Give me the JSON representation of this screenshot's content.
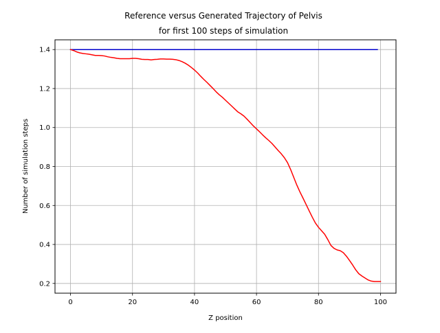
{
  "chart_data": {
    "type": "line",
    "title": [
      "Reference versus Generated Trajectory of Pelvis",
      "for first 100 steps of simulation"
    ],
    "xlabel": "Z position",
    "ylabel": "Number of simulation steps",
    "xlim": [
      -5,
      105
    ],
    "ylim": [
      0.15,
      1.45
    ],
    "grid": true,
    "x_ticks": [
      0,
      20,
      40,
      60,
      80,
      100
    ],
    "x_tick_labels": [
      "0",
      "20",
      "40",
      "60",
      "80",
      "100"
    ],
    "y_ticks": [
      0.2,
      0.4,
      0.6,
      0.8,
      1.0,
      1.2,
      1.4
    ],
    "y_tick_labels": [
      "0.2",
      "0.4",
      "0.6",
      "0.8",
      "1.0",
      "1.2",
      "1.4"
    ],
    "series": [
      {
        "color": "#0000cc",
        "x": [
          0,
          99
        ],
        "y": [
          1.4,
          1.4
        ]
      },
      {
        "color": "#ff0000",
        "x": [
          0,
          1,
          2,
          3,
          4,
          5,
          6,
          7,
          8,
          9,
          10,
          11,
          12,
          13,
          14,
          15,
          16,
          17,
          18,
          19,
          20,
          21,
          22,
          23,
          24,
          25,
          26,
          27,
          28,
          29,
          30,
          31,
          32,
          33,
          34,
          35,
          36,
          37,
          38,
          39,
          40,
          41,
          42,
          43,
          44,
          45,
          46,
          47,
          48,
          49,
          50,
          51,
          52,
          53,
          54,
          55,
          56,
          57,
          58,
          59,
          60,
          61,
          62,
          63,
          64,
          65,
          66,
          67,
          68,
          69,
          70,
          71,
          72,
          73,
          74,
          75,
          76,
          77,
          78,
          79,
          80,
          81,
          82,
          83,
          84,
          85,
          86,
          87,
          88,
          89,
          90,
          91,
          92,
          93,
          94,
          95,
          96,
          97,
          98,
          99,
          100
        ],
        "y": [
          1.4,
          1.395,
          1.388,
          1.383,
          1.38,
          1.378,
          1.376,
          1.373,
          1.37,
          1.37,
          1.369,
          1.367,
          1.363,
          1.36,
          1.358,
          1.355,
          1.353,
          1.353,
          1.353,
          1.353,
          1.355,
          1.355,
          1.353,
          1.35,
          1.349,
          1.349,
          1.347,
          1.349,
          1.35,
          1.352,
          1.352,
          1.351,
          1.351,
          1.35,
          1.348,
          1.344,
          1.338,
          1.33,
          1.32,
          1.308,
          1.295,
          1.28,
          1.263,
          1.247,
          1.232,
          1.216,
          1.2,
          1.183,
          1.168,
          1.155,
          1.14,
          1.125,
          1.11,
          1.095,
          1.08,
          1.07,
          1.058,
          1.042,
          1.025,
          1.008,
          0.993,
          0.978,
          0.962,
          0.947,
          0.933,
          0.918,
          0.9,
          0.882,
          0.865,
          0.845,
          0.82,
          0.785,
          0.745,
          0.705,
          0.67,
          0.638,
          0.605,
          0.572,
          0.54,
          0.51,
          0.488,
          0.47,
          0.452,
          0.425,
          0.395,
          0.38,
          0.372,
          0.368,
          0.358,
          0.34,
          0.318,
          0.295,
          0.27,
          0.25,
          0.238,
          0.228,
          0.218,
          0.212,
          0.21,
          0.21,
          0.21
        ]
      }
    ]
  }
}
